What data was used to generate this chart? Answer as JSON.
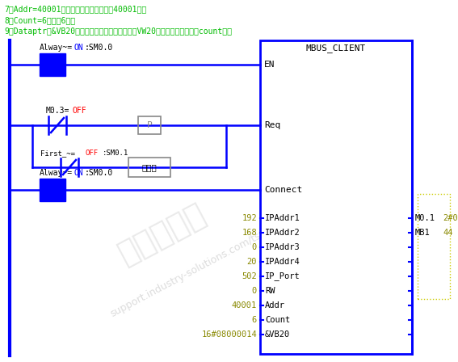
{
  "bg_color": "#ffffff",
  "header_lines": [
    "7、Addr=40001，表示寄存器数据地址从40001开始",
    "8、Count=6，表示6个字",
    "9、Dataptr：&VB20表示通信读取过来的数据放至VW20开始的区域，长度由count决定"
  ],
  "header_color": "#00bb00",
  "box_color": "#0000ff",
  "block_title": "MBUS_CLIENT",
  "block_params": [
    {
      "label": "IPAddr1",
      "value": "192",
      "out_label": "M0.1",
      "out_value": "2#0"
    },
    {
      "label": "IPAddr2",
      "value": "168",
      "out_label": "MB1",
      "out_value": "44"
    },
    {
      "label": "IPAddr3",
      "value": "0",
      "out_label": "",
      "out_value": ""
    },
    {
      "label": "IPAddr4",
      "value": "20",
      "out_label": "",
      "out_value": ""
    },
    {
      "label": "IP_Port",
      "value": "502",
      "out_label": "",
      "out_value": ""
    },
    {
      "label": "RW",
      "value": "0",
      "out_label": "",
      "out_value": ""
    },
    {
      "label": "Addr",
      "value": "40001",
      "out_label": "",
      "out_value": ""
    },
    {
      "label": "Count",
      "value": "6",
      "out_label": "",
      "out_value": ""
    },
    {
      "label": "&VB20",
      "value": "16#08000014",
      "out_label": "",
      "out_value": ""
    }
  ],
  "value_color": "#888800",
  "out_value_color": "#888800",
  "wire_color": "#0000ff",
  "contact_fill": "#0000ff",
  "gray_color": "#888888",
  "rising_text": "上升沿",
  "watermark1": "西门子工业",
  "watermark2": "support.industry-solutions.com/ts",
  "yellow_dot_color": "#cccc00"
}
